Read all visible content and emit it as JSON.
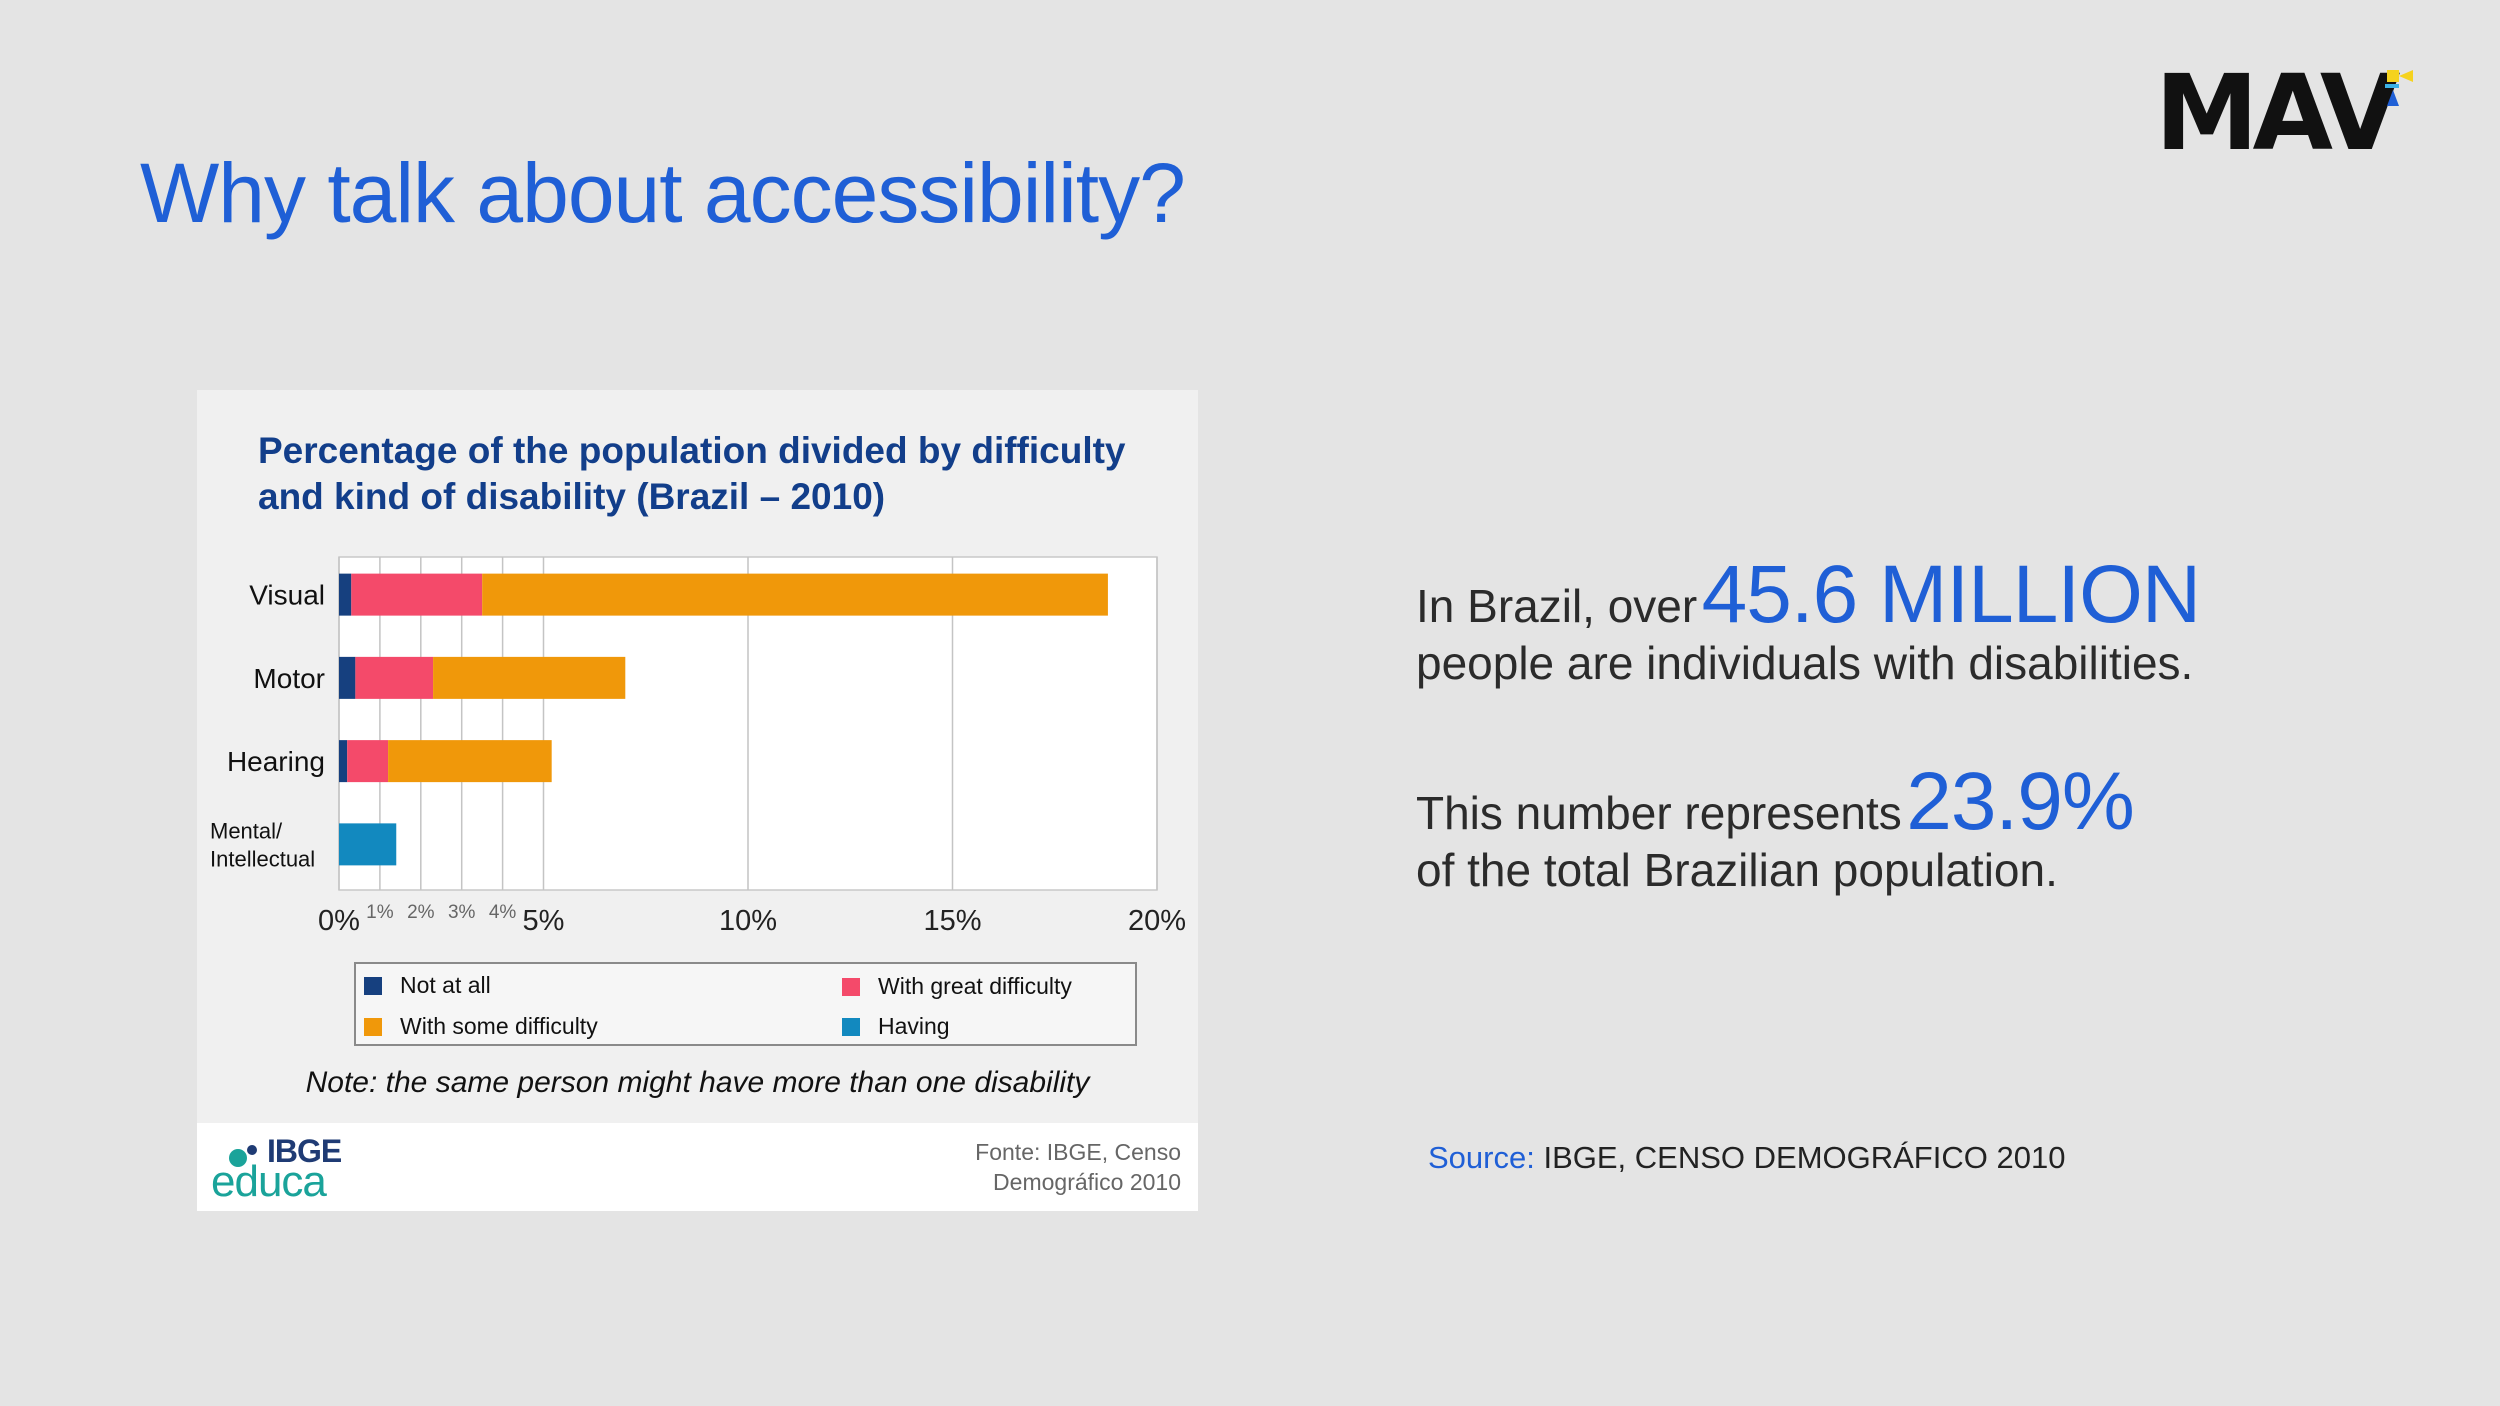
{
  "slide": {
    "title": "Why talk about accessibility?",
    "logo_text": "MAV"
  },
  "chart_data": {
    "type": "bar",
    "orientation": "horizontal",
    "stacked": true,
    "title": "Percentage of the population divided by difficulty and kind of disability (Brazil – 2010)",
    "categories": [
      "Visual",
      "Motor",
      "Hearing",
      "Mental/ Intellectual"
    ],
    "series": [
      {
        "name": "Not at all",
        "color": "#16407f",
        "values": [
          0.3,
          0.4,
          0.2,
          0
        ]
      },
      {
        "name": "With great difficulty",
        "color": "#f44a6a",
        "values": [
          3.2,
          1.9,
          1.0,
          0
        ]
      },
      {
        "name": "With some difficulty",
        "color": "#f0980a",
        "values": [
          15.3,
          4.7,
          4.0,
          0
        ]
      },
      {
        "name": "Having",
        "color": "#1289bf",
        "values": [
          0,
          0,
          0,
          1.4
        ]
      }
    ],
    "xlim": [
      0,
      20
    ],
    "major_ticks": [
      {
        "value": 0,
        "label": "0%"
      },
      {
        "value": 5,
        "label": "5%"
      },
      {
        "value": 10,
        "label": "10%"
      },
      {
        "value": 15,
        "label": "15%"
      },
      {
        "value": 20,
        "label": "20%"
      }
    ],
    "minor_ticks": [
      {
        "value": 1,
        "label": "1%"
      },
      {
        "value": 2,
        "label": "2%"
      },
      {
        "value": 3,
        "label": "3%"
      },
      {
        "value": 4,
        "label": "4%"
      }
    ],
    "legend": [
      {
        "label": "Not at all",
        "color": "#16407f"
      },
      {
        "label": "With great difficulty",
        "color": "#f44a6a"
      },
      {
        "label": "With some difficulty",
        "color": "#f0980a"
      },
      {
        "label": "Having",
        "color": "#1289bf"
      }
    ],
    "note": "Note: the same person might have more than one disability",
    "source": "Fonte: IBGE, Censo Demográfico 2010"
  },
  "chart_brand": {
    "name": "IBGE",
    "sub": "educa"
  },
  "stats": {
    "line1_lead": "In Brazil, over",
    "line1_number": "45.6 MILLION",
    "line1_rest": "people are individuals with disabilities.",
    "line2_lead": "This number represents",
    "line2_number": "23.9%",
    "line2_rest": "of the total Brazilian population."
  },
  "source": {
    "label": "Source:",
    "text": "IBGE, CENSO DEMOGRÁFICO 2010"
  }
}
